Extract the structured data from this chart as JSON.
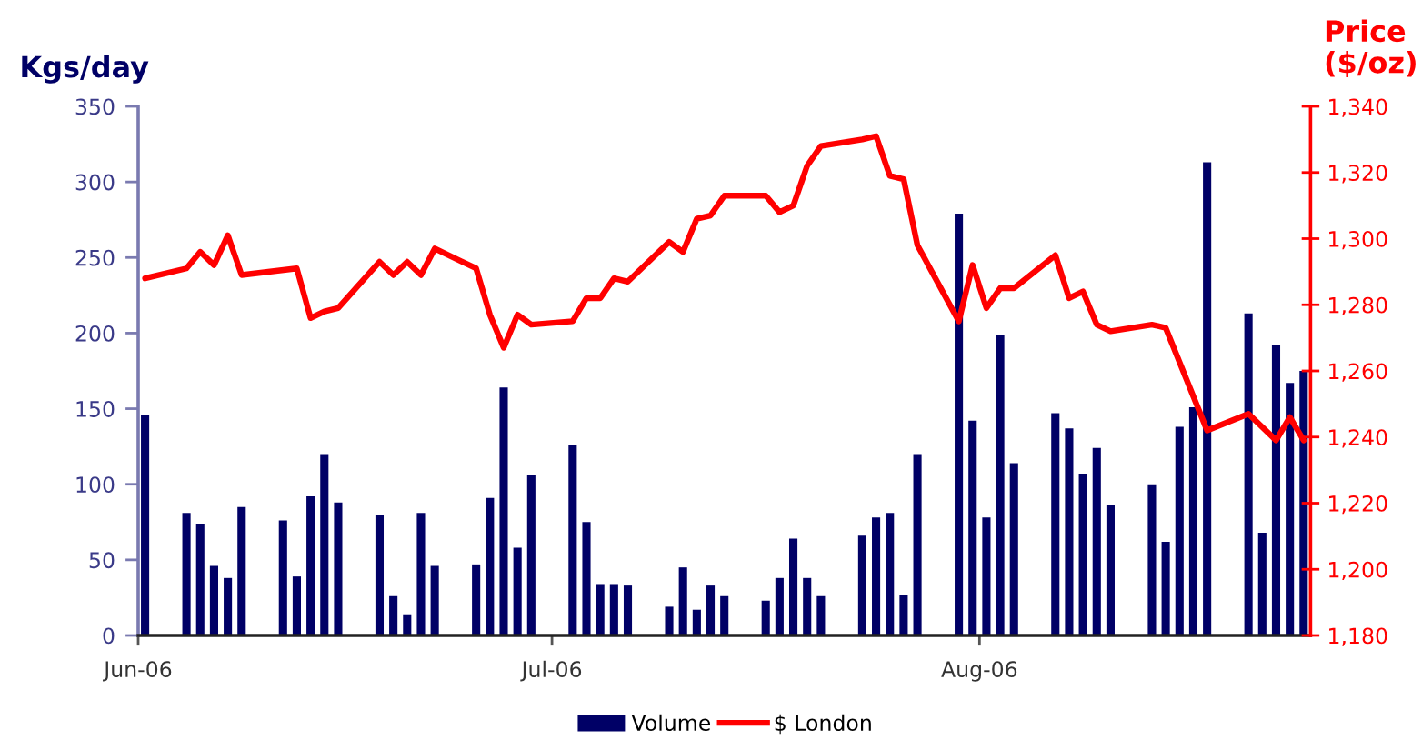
{
  "chart_data": {
    "type": "bar",
    "ylabel": "Kgs/day",
    "y2label": "Price\n($/oz)",
    "xlim": [
      "2006-06-01T12:00",
      "2006-08-25T12:00"
    ],
    "xticks": [
      {
        "value": "2006-06-01T12:00",
        "label": "Jun-06"
      },
      {
        "value": "2006-07-01T12:00",
        "label": "Jul-06"
      },
      {
        "value": "2006-08-01T12:00",
        "label": "Aug-06"
      }
    ],
    "ylim": [
      0,
      350
    ],
    "yticks": [
      0,
      50,
      100,
      150,
      200,
      250,
      300,
      350
    ],
    "y2lim": [
      1180,
      1340
    ],
    "y2ticks": [
      {
        "value": 1180,
        "label": "1,180"
      },
      {
        "value": 1200,
        "label": "1,200"
      },
      {
        "value": 1220,
        "label": "1,220"
      },
      {
        "value": 1240,
        "label": "1,240"
      },
      {
        "value": 1260,
        "label": "1,260"
      },
      {
        "value": 1280,
        "label": "1,280"
      },
      {
        "value": 1300,
        "label": "1,300"
      },
      {
        "value": 1320,
        "label": "1,320"
      },
      {
        "value": 1340,
        "label": "1,340"
      }
    ],
    "legend": "bottom",
    "series": [
      {
        "name": "Volume",
        "color": "#000066",
        "x": [
          "2006-06-02",
          "2006-06-05",
          "2006-06-06",
          "2006-06-07",
          "2006-06-08",
          "2006-06-09",
          "2006-06-12",
          "2006-06-13",
          "2006-06-14",
          "2006-06-15",
          "2006-06-16",
          "2006-06-19",
          "2006-06-20",
          "2006-06-21",
          "2006-06-22",
          "2006-06-23",
          "2006-06-26",
          "2006-06-27",
          "2006-06-28",
          "2006-06-29",
          "2006-06-30",
          "2006-07-03",
          "2006-07-04",
          "2006-07-05",
          "2006-07-06",
          "2006-07-07",
          "2006-07-10",
          "2006-07-11",
          "2006-07-12",
          "2006-07-13",
          "2006-07-14",
          "2006-07-17",
          "2006-07-18",
          "2006-07-19",
          "2006-07-20",
          "2006-07-21",
          "2006-07-24",
          "2006-07-25",
          "2006-07-26",
          "2006-07-27",
          "2006-07-28",
          "2006-07-31",
          "2006-08-01",
          "2006-08-02",
          "2006-08-03",
          "2006-08-04",
          "2006-08-07",
          "2006-08-08",
          "2006-08-09",
          "2006-08-10",
          "2006-08-11",
          "2006-08-14",
          "2006-08-15",
          "2006-08-16",
          "2006-08-17",
          "2006-08-18",
          "2006-08-21",
          "2006-08-22",
          "2006-08-23",
          "2006-08-24",
          "2006-08-25"
        ],
        "values": [
          146,
          81,
          74,
          46,
          38,
          85,
          76,
          39,
          92,
          120,
          88,
          80,
          26,
          14,
          81,
          46,
          47,
          91,
          164,
          58,
          106,
          126,
          75,
          34,
          34,
          33,
          19,
          45,
          17,
          33,
          26,
          23,
          38,
          64,
          38,
          26,
          66,
          78,
          81,
          27,
          120,
          279,
          142,
          78,
          199,
          114,
          147,
          137,
          107,
          124,
          86,
          100,
          62,
          138,
          151,
          313,
          213,
          68,
          192,
          167,
          175
        ]
      },
      {
        "name": "$ London",
        "type": "line",
        "axis": "y2",
        "color": "#ff0000",
        "x": [
          "2006-06-02",
          "2006-06-05",
          "2006-06-06",
          "2006-06-07",
          "2006-06-08",
          "2006-06-09",
          "2006-06-13",
          "2006-06-14",
          "2006-06-15",
          "2006-06-16",
          "2006-06-19",
          "2006-06-20",
          "2006-06-21",
          "2006-06-22",
          "2006-06-23",
          "2006-06-26",
          "2006-06-27",
          "2006-06-28",
          "2006-06-29",
          "2006-06-30",
          "2006-07-03",
          "2006-07-04",
          "2006-07-05",
          "2006-07-06",
          "2006-07-07",
          "2006-07-10",
          "2006-07-11",
          "2006-07-12",
          "2006-07-13",
          "2006-07-14",
          "2006-07-17",
          "2006-07-18",
          "2006-07-19",
          "2006-07-20",
          "2006-07-21",
          "2006-07-24",
          "2006-07-25",
          "2006-07-26",
          "2006-07-27",
          "2006-07-28",
          "2006-07-31",
          "2006-08-01",
          "2006-08-02",
          "2006-08-03",
          "2006-08-04",
          "2006-08-07",
          "2006-08-08",
          "2006-08-09",
          "2006-08-10",
          "2006-08-11",
          "2006-08-14",
          "2006-08-15",
          "2006-08-18",
          "2006-08-21",
          "2006-08-23",
          "2006-08-24",
          "2006-08-25"
        ],
        "values": [
          1288,
          1291,
          1296,
          1292,
          1301,
          1289,
          1291,
          1276,
          1278,
          1279,
          1293,
          1289,
          1293,
          1289,
          1297,
          1291,
          1277,
          1267,
          1277,
          1274,
          1275,
          1282,
          1282,
          1288,
          1287,
          1299,
          1296,
          1306,
          1307,
          1313,
          1313,
          1308,
          1310,
          1322,
          1328,
          1330,
          1331,
          1319,
          1318,
          1298,
          1275,
          1292,
          1279,
          1285,
          1285,
          1295,
          1282,
          1284,
          1274,
          1272,
          1274,
          1273,
          1242,
          1247,
          1239,
          1246,
          1239
        ]
      }
    ]
  }
}
